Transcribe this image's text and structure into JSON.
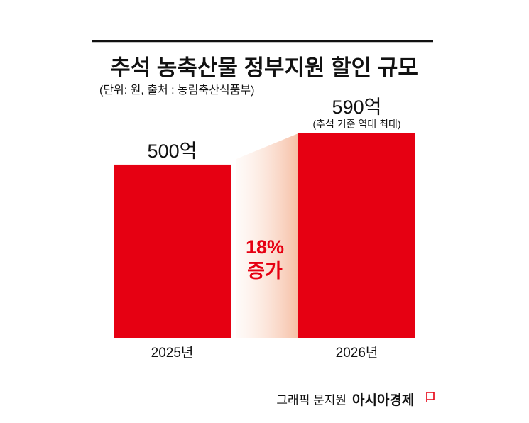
{
  "chart_data": {
    "type": "bar",
    "title": "추석 농축산물 정부지원 할인 규모",
    "subtitle": "(단위: 원, 출처 : 농림축산식품부)",
    "categories": [
      "2025년",
      "2026년"
    ],
    "values": [
      500,
      590
    ],
    "value_labels": [
      "500억",
      "590억"
    ],
    "color": "#e60012",
    "annotations": [
      "(추석 기준 역대 최대)",
      "18%",
      "증가"
    ]
  },
  "credit": {
    "graphic": "그래픽 문지원",
    "brand": "아시아경제"
  }
}
